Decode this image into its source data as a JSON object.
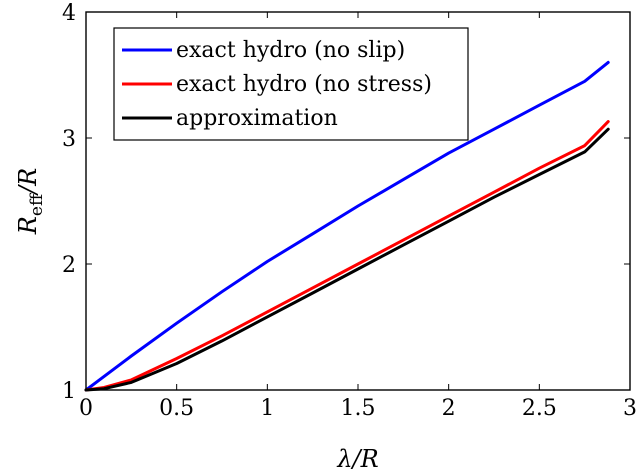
{
  "chart_data": {
    "type": "line",
    "title": "",
    "xlabel": "λ/R",
    "ylabel_main": "R",
    "ylabel_sub": "eff",
    "ylabel_tail": "/R",
    "xlim": [
      0,
      3
    ],
    "ylim": [
      1,
      4
    ],
    "xticks": [
      0,
      0.5,
      1,
      1.5,
      2,
      2.5,
      3
    ],
    "xtick_labels": [
      "0",
      "0.5",
      "1",
      "1.5",
      "2",
      "2.5",
      "3"
    ],
    "yticks": [
      1,
      2,
      3,
      4
    ],
    "ytick_labels": [
      "1",
      "2",
      "3",
      "4"
    ],
    "grid": false,
    "legend_position": "top-left",
    "series": [
      {
        "name": "exact hydro (no slip)",
        "color": "#0000ff",
        "x": [
          0,
          0.25,
          0.5,
          0.75,
          1,
          1.25,
          1.5,
          1.75,
          2,
          2.25,
          2.5,
          2.75,
          2.88
        ],
        "y": [
          1.0,
          1.27,
          1.53,
          1.78,
          2.02,
          2.24,
          2.46,
          2.67,
          2.88,
          3.07,
          3.26,
          3.45,
          3.6
        ]
      },
      {
        "name": "exact hydro (no stress)",
        "color": "#ff0000",
        "x": [
          0,
          0.1,
          0.25,
          0.5,
          0.75,
          1,
          1.25,
          1.5,
          1.75,
          2,
          2.25,
          2.5,
          2.75,
          2.88
        ],
        "y": [
          1.0,
          1.02,
          1.08,
          1.25,
          1.43,
          1.62,
          1.81,
          2.0,
          2.19,
          2.38,
          2.57,
          2.76,
          2.94,
          3.13
        ]
      },
      {
        "name": "approximation",
        "color": "#000000",
        "x": [
          0,
          0.1,
          0.25,
          0.5,
          0.75,
          1,
          1.25,
          1.5,
          1.75,
          2,
          2.25,
          2.5,
          2.75,
          2.88
        ],
        "y": [
          1.0,
          1.01,
          1.06,
          1.21,
          1.39,
          1.58,
          1.77,
          1.96,
          2.15,
          2.34,
          2.53,
          2.71,
          2.89,
          3.07
        ]
      }
    ]
  }
}
